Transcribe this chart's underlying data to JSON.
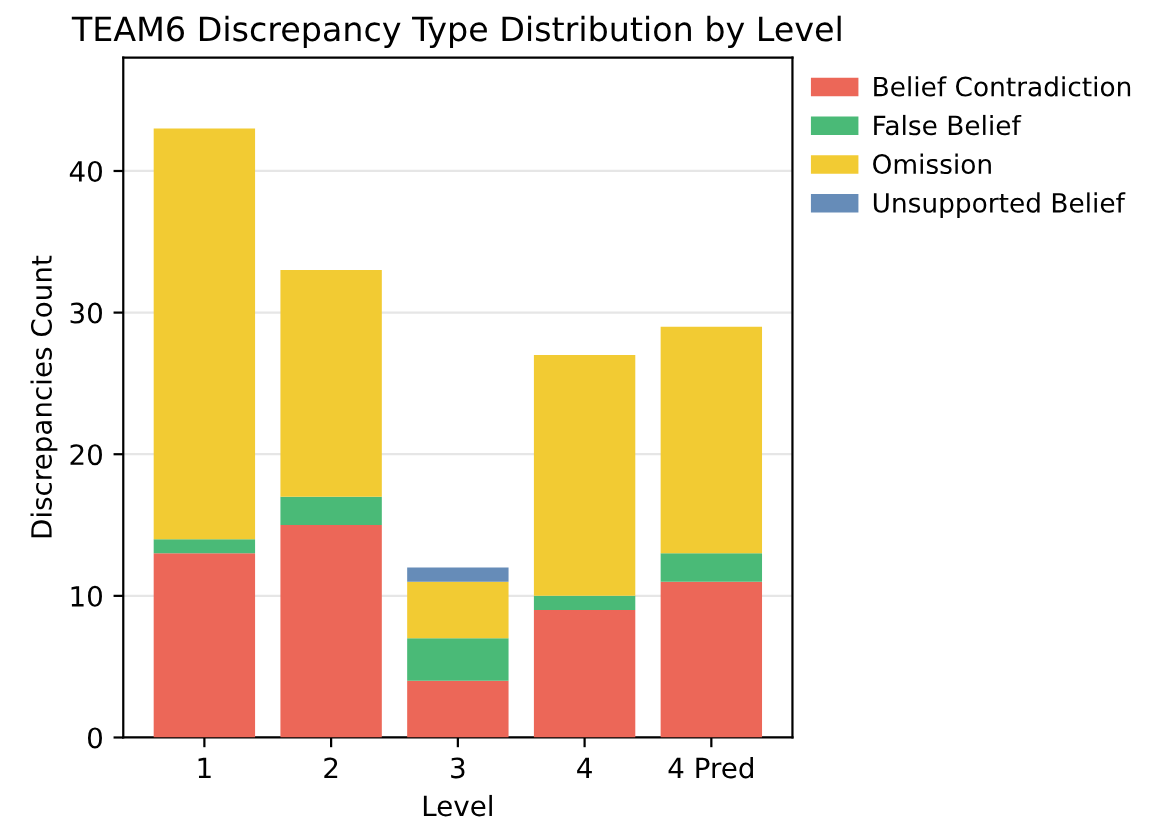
{
  "chart_data": {
    "type": "bar",
    "title": "TEAM6 Discrepancy Type Distribution by Level",
    "xlabel": "Level",
    "ylabel": "Discrepancies Count",
    "categories": [
      "1",
      "2",
      "3",
      "4",
      "4 Pred"
    ],
    "stacked": true,
    "series": [
      {
        "name": "Belief Contradiction",
        "color": "#ec6758",
        "values": [
          13,
          15,
          4,
          9,
          11
        ]
      },
      {
        "name": "False Belief",
        "color": "#4aba77",
        "values": [
          1,
          2,
          3,
          1,
          2
        ]
      },
      {
        "name": "Omission",
        "color": "#f2cb33",
        "values": [
          29,
          16,
          4,
          17,
          16
        ]
      },
      {
        "name": "Unsupported Belief",
        "color": "#668cb8",
        "values": [
          0,
          0,
          1,
          0,
          0
        ]
      }
    ],
    "ylim": [
      0,
      48
    ],
    "yticks": [
      0,
      10,
      20,
      30,
      40
    ],
    "grid": "y",
    "legend": "top right"
  }
}
